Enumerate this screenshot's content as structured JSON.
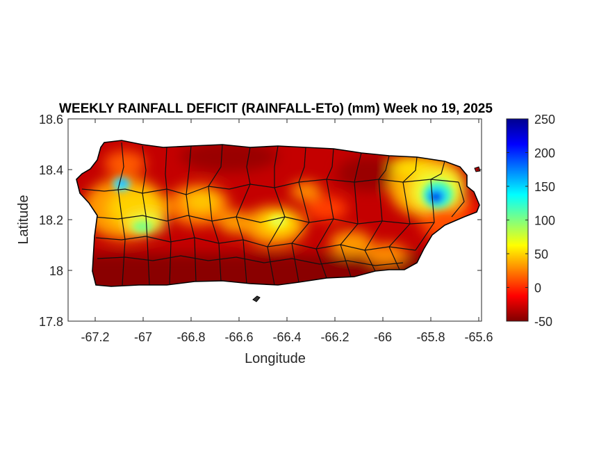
{
  "title": "WEEKLY RAINFALL DEFICIT (RAINFALL-ETo) (mm) Week no 19, 2025",
  "xlabel": "Longitude",
  "ylabel": "Latitude",
  "x_ticks": [
    "-67.2",
    "-67",
    "-66.8",
    "-66.6",
    "-66.4",
    "-66.2",
    "-66",
    "-65.8",
    "-65.6"
  ],
  "y_ticks": [
    "18.6",
    "18.4",
    "18.2",
    "18",
    "17.8"
  ],
  "colorbar_ticks": [
    "250",
    "200",
    "150",
    "100",
    "50",
    "0",
    "-50"
  ],
  "map_data": {
    "type": "heatmap",
    "region": "Puerto Rico",
    "xlim": [
      -67.3,
      -65.58
    ],
    "ylim": [
      17.8,
      18.6
    ],
    "x_tick_values": [
      -67.2,
      -67,
      -66.8,
      -66.6,
      -66.4,
      -66.2,
      -66,
      -65.8,
      -65.6
    ],
    "y_tick_values": [
      18.6,
      18.4,
      18.2,
      18,
      17.8
    ],
    "colorbar_range": [
      -50,
      250
    ],
    "colorbar_tick_values": [
      250,
      200,
      150,
      100,
      50,
      0,
      -50
    ],
    "colormap": "jet",
    "colormap_stops": [
      "#7f0000",
      "#ff0000",
      "#ff8000",
      "#ffff00",
      "#80ff80",
      "#00ffff",
      "#0080ff",
      "#0000ff",
      "#00008f"
    ]
  }
}
